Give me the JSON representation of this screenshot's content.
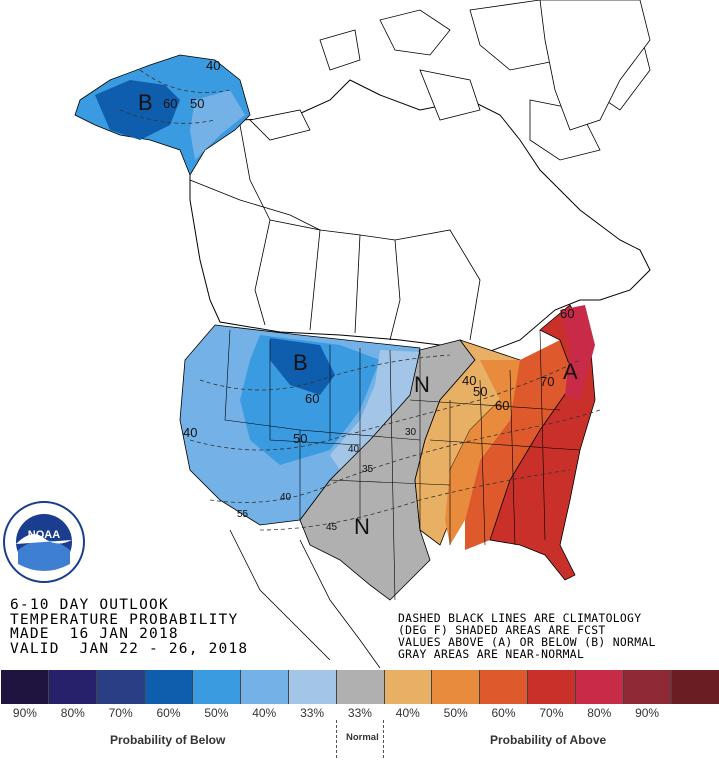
{
  "map": {
    "contours": [
      {
        "label": "40",
        "region": "alaska"
      },
      {
        "label": "50",
        "region": "alaska"
      },
      {
        "label": "60",
        "region": "alaska"
      },
      {
        "label": "40",
        "region": "west"
      },
      {
        "label": "40",
        "region": "southwest"
      },
      {
        "label": "50",
        "region": "plains"
      },
      {
        "label": "60",
        "region": "plains"
      },
      {
        "label": "55",
        "region": "southwest"
      },
      {
        "label": "40",
        "region": "texas"
      },
      {
        "label": "45",
        "region": "texas"
      },
      {
        "label": "35",
        "region": "central"
      },
      {
        "label": "30",
        "region": "central"
      },
      {
        "label": "40",
        "region": "great-lakes"
      },
      {
        "label": "50",
        "region": "great-lakes"
      },
      {
        "label": "60",
        "region": "east"
      },
      {
        "label": "70",
        "region": "east"
      },
      {
        "label": "60",
        "region": "new-england"
      }
    ],
    "region_markers": [
      {
        "letter": "B",
        "meaning": "Below"
      },
      {
        "letter": "B",
        "meaning": "Below"
      },
      {
        "letter": "N",
        "meaning": "Normal"
      },
      {
        "letter": "N",
        "meaning": "Normal"
      },
      {
        "letter": "A",
        "meaning": "Above"
      }
    ]
  },
  "header": {
    "line1": "6-10 DAY OUTLOOK",
    "line2": "TEMPERATURE PROBABILITY",
    "line3": "MADE  16 JAN 2018",
    "line4": "VALID  JAN 22 - 26, 2018"
  },
  "notes": {
    "line1": "DASHED BLACK LINES ARE CLIMATOLOGY",
    "line2": "(DEG F) SHADED AREAS ARE FCST",
    "line3": "VALUES ABOVE (A) OR BELOW (B) NORMAL",
    "line4": "GRAY AREAS ARE NEAR-NORMAL"
  },
  "legend": {
    "swatches": [
      {
        "pct": "90%",
        "color": "#1f1440"
      },
      {
        "pct": "80%",
        "color": "#27216b"
      },
      {
        "pct": "70%",
        "color": "#2a3e86"
      },
      {
        "pct": "60%",
        "color": "#0f5eae"
      },
      {
        "pct": "50%",
        "color": "#3a9be0"
      },
      {
        "pct": "40%",
        "color": "#74b1e6"
      },
      {
        "pct": "33%",
        "color": "#a3c6e8"
      },
      {
        "pct": "33%",
        "color": "#b0b0b0"
      },
      {
        "pct": "40%",
        "color": "#e8b065"
      },
      {
        "pct": "50%",
        "color": "#e88b3c"
      },
      {
        "pct": "60%",
        "color": "#de5a2c"
      },
      {
        "pct": "70%",
        "color": "#c9302a"
      },
      {
        "pct": "80%",
        "color": "#c72b48"
      },
      {
        "pct": "90%",
        "color": "#8e2a36"
      },
      {
        "pct": "",
        "color": "#6a1d22"
      }
    ],
    "below_label": "Probability of Below",
    "normal_label": "Normal",
    "above_label": "Probability of Above"
  },
  "logo": {
    "text": "NOAA",
    "ring_text": "NATIONAL OCEANIC AND ATMOSPHERIC ADMINISTRATION · U.S. DEPARTMENT OF COMMERCE"
  }
}
